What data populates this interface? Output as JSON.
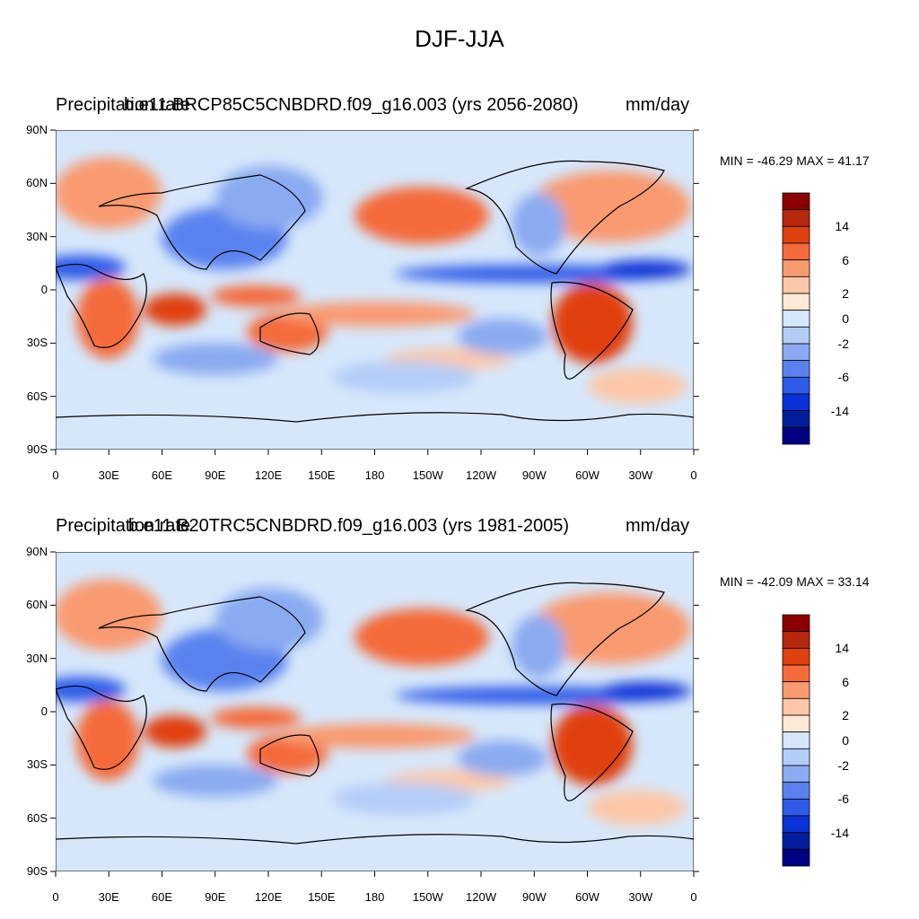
{
  "title": "DJF-JJA",
  "panels": [
    {
      "left_label": "Precipitation rate",
      "center_label": "b.e11.BRCP85C5CNBDRD.f09_g16.003 (yrs 2056-2080)",
      "right_label": "mm/day",
      "stats": "MIN = -46.29 MAX =  41.17"
    },
    {
      "left_label": "Precipitation rate",
      "center_label": "b.e11.B20TRC5CNBDRD.f09_g16.003 (yrs 1981-2005)",
      "right_label": "mm/day",
      "stats": "MIN = -42.09 MAX =  33.14"
    }
  ],
  "lat_ticks": [
    "90N",
    "60N",
    "30N",
    "0",
    "30S",
    "60S",
    "90S"
  ],
  "lon_ticks": [
    "0",
    "30E",
    "60E",
    "90E",
    "120E",
    "150E",
    "180",
    "150W",
    "120W",
    "90W",
    "60W",
    "30W",
    "0"
  ],
  "colorbar": {
    "colors_top_to_bottom": [
      "#8b0000",
      "#b8280c",
      "#e0410e",
      "#f46a3a",
      "#f99a70",
      "#fdc7a8",
      "#fee8d6",
      "#d6e7fb",
      "#b4cdf7",
      "#8aaaf1",
      "#5a82ef",
      "#2e5ce8",
      "#0a32d6",
      "#001e9c",
      "#000080"
    ],
    "labels": [
      "14",
      "6",
      "2",
      "0",
      "-2",
      "-6",
      "-14"
    ]
  },
  "colors": {
    "ocean_base": "#d6e7fb",
    "wet": "#f46a3a",
    "dry": "#2e5ce8"
  }
}
